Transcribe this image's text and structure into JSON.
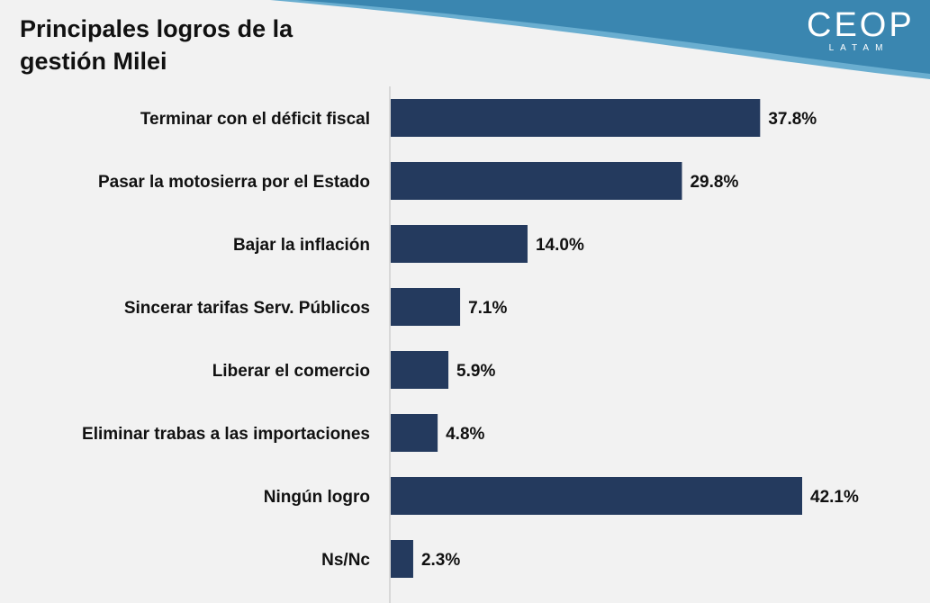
{
  "header": {
    "title": "Principales logros de la gestión Milei",
    "logo_main": "CEOP",
    "logo_sub": "LATAM",
    "wave_color": "#3a86b0",
    "wave_color_light": "#6aaed0"
  },
  "chart_data": {
    "type": "bar",
    "orientation": "horizontal",
    "title": "Principales logros de la gestión Milei",
    "xlabel": "",
    "ylabel": "",
    "categories": [
      "Terminar con el déficit fiscal",
      "Pasar la motosierra por el Estado",
      "Bajar la inflación",
      "Sincerar tarifas Serv. Públicos",
      "Liberar el comercio",
      "Eliminar trabas a las importaciones",
      "Ningún logro",
      "Ns/Nc"
    ],
    "values": [
      37.8,
      29.8,
      14.0,
      7.1,
      5.9,
      4.8,
      42.1,
      2.3
    ],
    "value_labels": [
      "37.8%",
      "29.8%",
      "14.0%",
      "7.1%",
      "5.9%",
      "4.8%",
      "42.1%",
      "2.3%"
    ],
    "bar_color": "#243a5e",
    "axis_color": "#bfbfbf",
    "grid": false,
    "legend": "none"
  }
}
